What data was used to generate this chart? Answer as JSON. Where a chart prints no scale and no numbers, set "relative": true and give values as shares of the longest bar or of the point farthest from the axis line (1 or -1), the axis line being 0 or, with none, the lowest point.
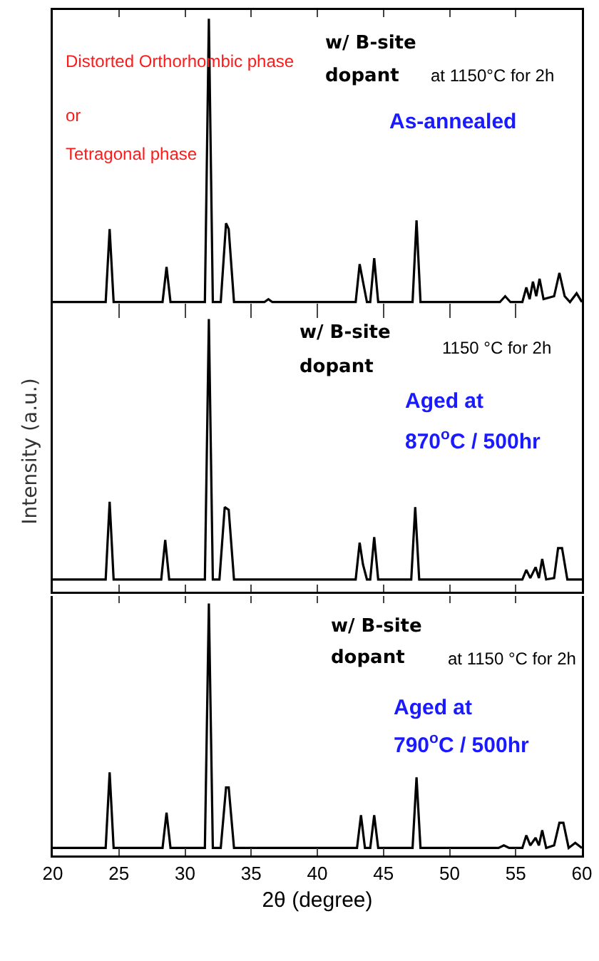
{
  "chart_data": [
    {
      "type": "line",
      "relative": true,
      "xlim": [
        20,
        60
      ],
      "xticks": [
        20,
        25,
        30,
        35,
        40,
        45,
        50,
        55,
        60
      ],
      "tick_labels": false,
      "grid": false,
      "marker": "none",
      "line_style": "solid",
      "x": [
        20,
        24.0,
        24.3,
        24.6,
        28.3,
        28.6,
        28.9,
        31.5,
        31.8,
        32.1,
        32.7,
        33.1,
        33.3,
        33.7,
        36.0,
        36.3,
        36.6,
        42.9,
        43.2,
        43.45,
        43.75,
        44.0,
        44.3,
        44.6,
        47.2,
        47.5,
        47.8,
        53.8,
        54.2,
        54.6,
        55.5,
        55.8,
        56.05,
        56.3,
        56.55,
        56.8,
        57.1,
        57.9,
        58.3,
        58.7,
        59.1,
        59.6,
        60
      ],
      "series": [
        {
          "color": "#000000",
          "values": [
            0.03,
            0.03,
            0.28,
            0.03,
            0.03,
            0.15,
            0.03,
            0.03,
            1,
            0.03,
            0.03,
            0.3,
            0.28,
            0.03,
            0.03,
            0.04,
            0.03,
            0.03,
            0.16,
            0.1,
            0.03,
            0.03,
            0.18,
            0.03,
            0.03,
            0.31,
            0.03,
            0.03,
            0.05,
            0.03,
            0.03,
            0.08,
            0.04,
            0.1,
            0.05,
            0.11,
            0.04,
            0.05,
            0.13,
            0.05,
            0.03,
            0.06,
            0.03
          ]
        }
      ],
      "annotations": [
        "Distorted Orthorhombic phase",
        "or",
        "Tetragonal phase",
        "w/ B-site",
        "dopant",
        "at 1150°C for 2h",
        "As-annealed"
      ]
    },
    {
      "type": "line",
      "relative": true,
      "xlim": [
        20,
        60
      ],
      "xticks": [
        20,
        25,
        30,
        35,
        40,
        45,
        50,
        55,
        60
      ],
      "tick_labels": false,
      "grid": false,
      "marker": "none",
      "line_style": "solid",
      "ylabel": "Intensity (a.u.)",
      "x": [
        20,
        24.0,
        24.3,
        24.6,
        28.2,
        28.5,
        28.8,
        31.5,
        31.8,
        32.1,
        32.6,
        33.0,
        33.3,
        33.7,
        42.9,
        43.2,
        43.45,
        43.75,
        44.0,
        44.3,
        44.6,
        47.1,
        47.4,
        47.7,
        55.5,
        55.8,
        56.1,
        56.5,
        56.75,
        57.0,
        57.3,
        57.9,
        58.2,
        58.5,
        58.9,
        60
      ],
      "series": [
        {
          "color": "#000000",
          "values": [
            0.045,
            0.045,
            0.33,
            0.045,
            0.045,
            0.19,
            0.045,
            0.045,
            1,
            0.045,
            0.045,
            0.31,
            0.3,
            0.045,
            0.045,
            0.18,
            0.1,
            0.045,
            0.045,
            0.2,
            0.045,
            0.045,
            0.31,
            0.045,
            0.045,
            0.08,
            0.05,
            0.09,
            0.05,
            0.12,
            0.045,
            0.05,
            0.16,
            0.16,
            0.045,
            0.045
          ]
        }
      ],
      "annotations": [
        "w/ B-site",
        "dopant",
        "1150 °C for 2h",
        "Aged at",
        "870$^{o}$C / 500hr"
      ]
    },
    {
      "type": "line",
      "relative": true,
      "xlim": [
        20,
        60
      ],
      "xticks": [
        20,
        25,
        30,
        35,
        40,
        45,
        50,
        55,
        60
      ],
      "tick_labels": "x",
      "grid": false,
      "marker": "none",
      "line_style": "solid",
      "xlabel": "2θ (degree)",
      "x": [
        20,
        24.0,
        24.3,
        24.6,
        28.3,
        28.6,
        28.9,
        31.5,
        31.8,
        32.1,
        32.7,
        33.1,
        33.3,
        33.7,
        43.0,
        43.3,
        43.6,
        44.0,
        44.3,
        44.6,
        47.2,
        47.5,
        47.8,
        53.7,
        54.1,
        54.5,
        55.5,
        55.8,
        56.1,
        56.5,
        56.75,
        57.0,
        57.3,
        57.9,
        58.3,
        58.6,
        59.0,
        59.5,
        60
      ],
      "series": [
        {
          "color": "#000000",
          "values": [
            0.03,
            0.03,
            0.33,
            0.03,
            0.03,
            0.17,
            0.03,
            0.03,
            1,
            0.03,
            0.03,
            0.27,
            0.27,
            0.03,
            0.03,
            0.16,
            0.03,
            0.03,
            0.16,
            0.03,
            0.03,
            0.31,
            0.03,
            0.03,
            0.04,
            0.03,
            0.03,
            0.08,
            0.04,
            0.07,
            0.04,
            0.1,
            0.03,
            0.04,
            0.13,
            0.13,
            0.03,
            0.05,
            0.03
          ]
        }
      ],
      "annotations": [
        "w/ B-site",
        "dopant",
        "at 1150 °C for 2h",
        "Aged at",
        "790$^{o}$C / 500hr"
      ]
    }
  ]
}
